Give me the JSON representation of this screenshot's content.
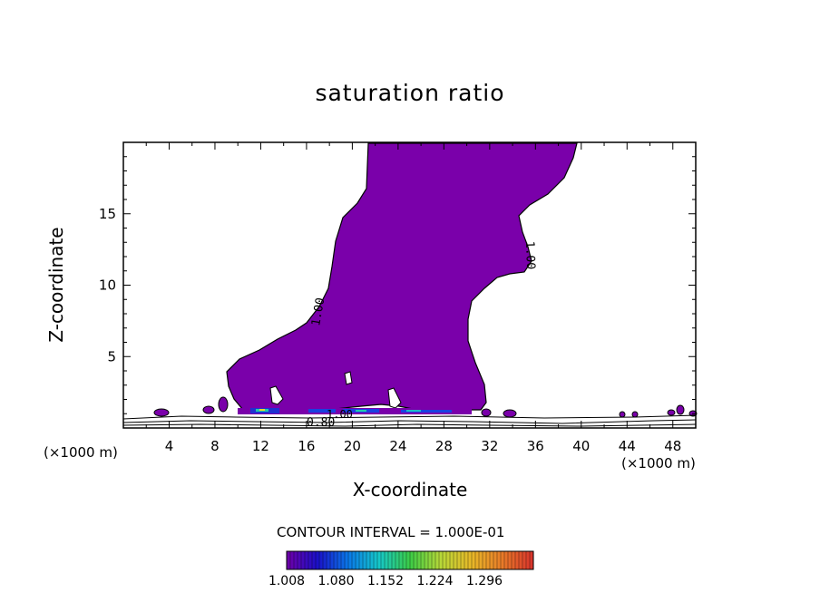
{
  "chart_data": {
    "type": "contour",
    "title": "saturation ratio",
    "xlabel": "X-coordinate",
    "ylabel": "Z-coordinate",
    "x_unit_note": "(×1000 m)",
    "xlim": [
      0,
      50
    ],
    "ylim": [
      0,
      20
    ],
    "x_ticks": [
      4,
      8,
      12,
      16,
      20,
      24,
      28,
      32,
      36,
      40,
      44,
      48
    ],
    "y_ticks": [
      5,
      10,
      15
    ],
    "contour_labels": [
      "1.00",
      "1.00",
      "1.00",
      "0.80"
    ],
    "contour_interval_text": "CONTOUR INTERVAL = 1.000E-01",
    "colorbar": {
      "ticks": [
        "1.008",
        "1.080",
        "1.152",
        "1.224",
        "1.296"
      ],
      "colors": [
        "#7000a8",
        "#1a10c8",
        "#0a78e8",
        "#16c8c8",
        "#3ccc46",
        "#b8d838",
        "#e8b828",
        "#e87a28",
        "#d8322c"
      ]
    },
    "fill_color": "#7a00aa"
  }
}
